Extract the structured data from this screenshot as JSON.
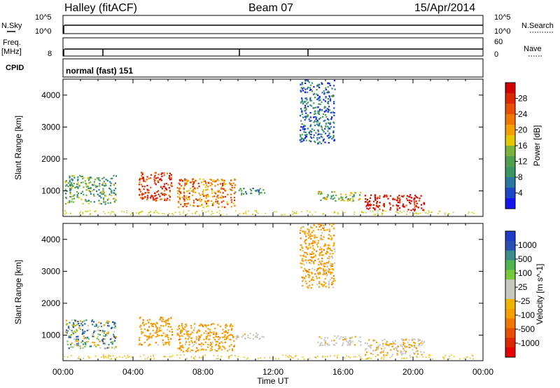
{
  "header": {
    "station": "Halley (fitACF)",
    "beam": "Beam 07",
    "date": "15/Apr/2014"
  },
  "strip_labels": {
    "nsky": "N.Sky",
    "nsky_ticks": [
      "10^5",
      "10^0"
    ],
    "nsearch": "N.Search",
    "nsearch_ticks": [
      "10^5",
      "10^0"
    ],
    "freq_line1": "Freq.",
    "freq_line2": "[MHz]",
    "freq_ticks": [
      "8"
    ],
    "nave": "Nave",
    "nave_ticks": [
      "60",
      "0"
    ],
    "cpid": "CPID",
    "cpid_value": "normal (fast) 151"
  },
  "chart_data": [
    {
      "type": "heatmap",
      "panel": "power",
      "ylabel": "Slant Range [km]",
      "xlabel": "",
      "y_ticks": [
        "1000",
        "2000",
        "3000",
        "4000"
      ],
      "ylim": [
        200,
        4500
      ],
      "xlim_hours": [
        0,
        24
      ],
      "colorbar": {
        "label": "Power [dB]",
        "ticks": [
          "4",
          "8",
          "12",
          "16",
          "20",
          "24",
          "28"
        ],
        "colors": [
          "#1414f0",
          "#1e46c8",
          "#2878a0",
          "#3c9664",
          "#50a050",
          "#78b43c",
          "#e6c800",
          "#f5a000",
          "#f07800",
          "#e65000",
          "#dc2800",
          "#d20000"
        ]
      },
      "echo_regions": [
        {
          "t_start": 0.1,
          "t_end": 3.0,
          "r_min": 600,
          "r_max": 1500,
          "level": 4
        },
        {
          "t_start": 4.3,
          "t_end": 6.2,
          "r_min": 700,
          "r_max": 1600,
          "level": 10
        },
        {
          "t_start": 6.5,
          "t_end": 9.8,
          "r_min": 500,
          "r_max": 1400,
          "level": 8
        },
        {
          "t_start": 9.8,
          "t_end": 11.5,
          "r_min": 900,
          "r_max": 1100,
          "level": 3
        },
        {
          "t_start": 13.5,
          "t_end": 15.5,
          "r_min": 2500,
          "r_max": 4500,
          "level": 2
        },
        {
          "t_start": 14.5,
          "t_end": 17.0,
          "r_min": 700,
          "r_max": 1000,
          "level": 5
        },
        {
          "t_start": 17.2,
          "t_end": 20.6,
          "r_min": 400,
          "r_max": 900,
          "level": 11
        }
      ]
    },
    {
      "type": "heatmap",
      "panel": "velocity",
      "ylabel": "Slant Range [km]",
      "xlabel": "Time UT",
      "x_ticks": [
        "00:00",
        "04:00",
        "08:00",
        "12:00",
        "16:00",
        "20:00",
        "00:00"
      ],
      "y_ticks": [
        "1000",
        "2000",
        "3000",
        "4000"
      ],
      "ylim": [
        200,
        4500
      ],
      "xlim_hours": [
        0,
        24
      ],
      "colorbar": {
        "label": "Velocity [m s^-1]",
        "ticks": [
          "1000",
          "500",
          "100",
          "25",
          "-25",
          "-100",
          "-500",
          "-1000"
        ],
        "colors": [
          "#1e3cc8",
          "#2850b4",
          "#3c8c8c",
          "#50b450",
          "#78c83c",
          "#c8c8c0",
          "#c8c8c0",
          "#f0b400",
          "#f5a000",
          "#f07800",
          "#e65000",
          "#dc2800",
          "#e60000"
        ]
      },
      "echo_regions": [
        {
          "t_start": 0.1,
          "t_end": 3.0,
          "r_min": 600,
          "r_max": 1500,
          "class": "mixed-green"
        },
        {
          "t_start": 4.3,
          "t_end": 6.2,
          "r_min": 700,
          "r_max": 1600,
          "class": "orange"
        },
        {
          "t_start": 6.5,
          "t_end": 9.8,
          "r_min": 500,
          "r_max": 1400,
          "class": "orange"
        },
        {
          "t_start": 9.8,
          "t_end": 11.5,
          "r_min": 900,
          "r_max": 1100,
          "class": "gray"
        },
        {
          "t_start": 13.5,
          "t_end": 15.5,
          "r_min": 2500,
          "r_max": 4500,
          "class": "orange"
        },
        {
          "t_start": 14.5,
          "t_end": 17.0,
          "r_min": 700,
          "r_max": 1000,
          "class": "gray"
        },
        {
          "t_start": 17.2,
          "t_end": 20.6,
          "r_min": 400,
          "r_max": 900,
          "class": "gray-orange"
        }
      ]
    }
  ]
}
